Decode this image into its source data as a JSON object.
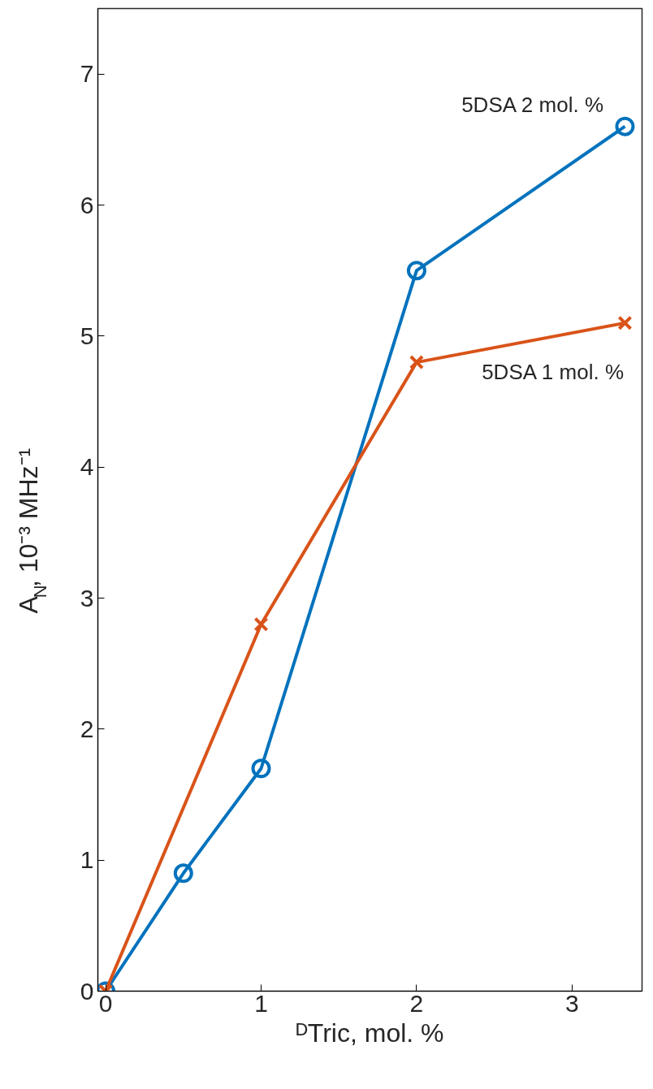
{
  "chart_data": {
    "type": "line",
    "xlabel": "ᴰTric, mol. %",
    "ylabel": "A$_{N}$, 10⁻³ MHz⁻¹",
    "xlim": [
      -0.05,
      3.45
    ],
    "ylim": [
      0,
      7.5
    ],
    "xticks": [
      0,
      1,
      2,
      3
    ],
    "yticks": [
      0,
      1,
      2,
      3,
      4,
      5,
      6,
      7
    ],
    "grid": false,
    "legend": false,
    "line_style": "solid",
    "series": [
      {
        "name": "5DSA 2 mol. %",
        "color": "#0072bd",
        "marker": "circle",
        "x": [
          0,
          0.5,
          1,
          2,
          3.34
        ],
        "values": [
          0,
          0.9,
          1.7,
          5.5,
          6.6
        ]
      },
      {
        "name": "5DSA 1 mol. %",
        "color": "#d95319",
        "marker": "cross",
        "x": [
          0,
          1,
          2,
          3.34
        ],
        "values": [
          0,
          2.8,
          4.8,
          5.1
        ]
      }
    ]
  }
}
